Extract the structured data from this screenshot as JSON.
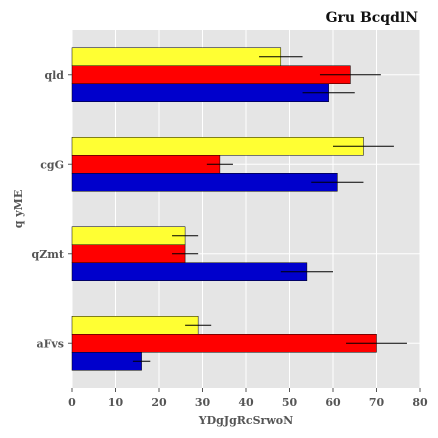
{
  "chart_data": {
    "type": "bar",
    "orientation": "horizontal",
    "title": "Gru BcqdlN",
    "xlabel": "YDgJgRcSrwoN",
    "ylabel": "q yME",
    "categories": [
      "qld",
      "cgG",
      "qZmt",
      "aFvs"
    ],
    "xlim": [
      0,
      80
    ],
    "xticks": [
      0,
      10,
      20,
      30,
      40,
      50,
      60,
      70,
      80
    ],
    "grid": true,
    "legend": "none",
    "series": [
      {
        "color": "#ffff33",
        "values": [
          48,
          67,
          26,
          29
        ],
        "errors": [
          5,
          7,
          3,
          3
        ]
      },
      {
        "color": "#ff0000",
        "values": [
          64,
          34,
          26,
          70
        ],
        "errors": [
          7,
          3,
          3,
          7
        ]
      },
      {
        "color": "#0000cc",
        "values": [
          59,
          61,
          54,
          16
        ],
        "errors": [
          6,
          6,
          6,
          2
        ]
      }
    ]
  }
}
